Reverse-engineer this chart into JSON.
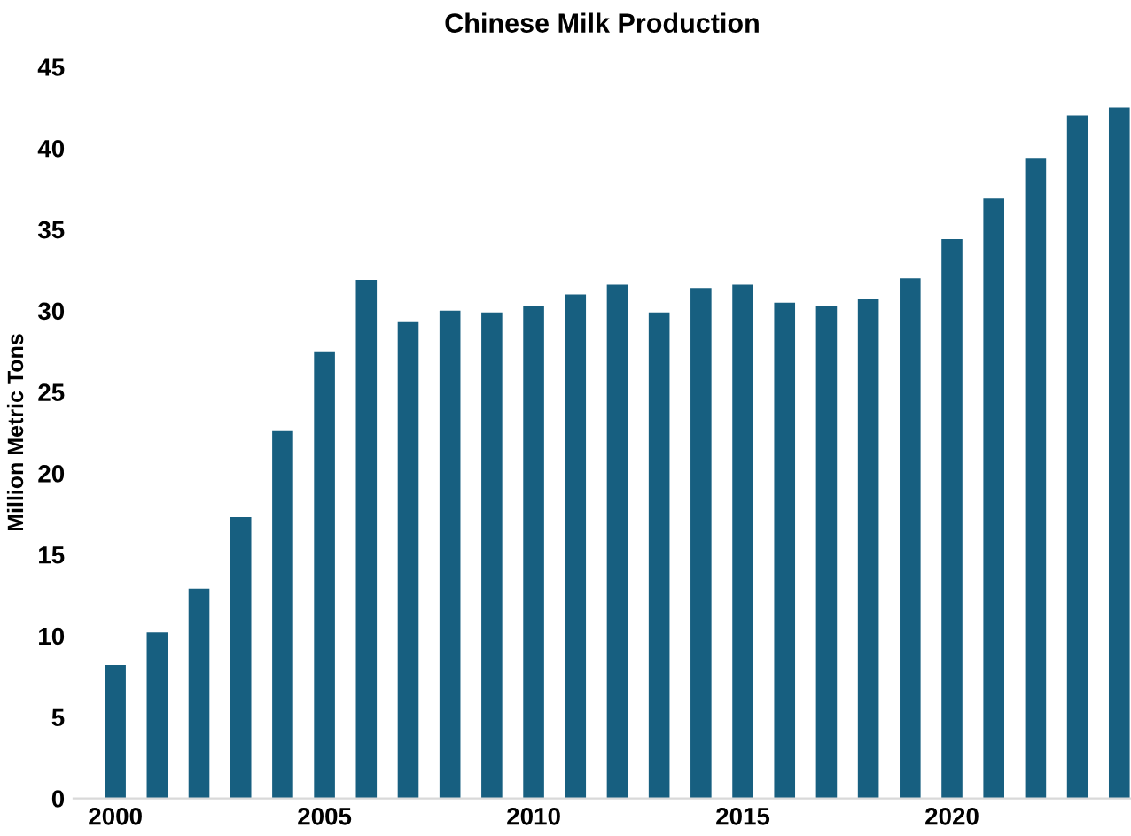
{
  "chart_data": {
    "type": "bar",
    "title": "Chinese Milk Production",
    "ylabel": "Million Metric Tons",
    "categories": [
      "2000",
      null,
      null,
      null,
      null,
      "2005",
      null,
      null,
      null,
      null,
      "2010",
      null,
      null,
      null,
      null,
      "2015",
      null,
      null,
      null,
      null,
      "2020",
      null,
      null,
      null,
      null
    ],
    "values": [
      8.2,
      10.2,
      12.9,
      17.3,
      22.6,
      27.5,
      31.9,
      29.3,
      30.0,
      29.9,
      30.3,
      31.0,
      31.6,
      29.9,
      31.4,
      31.6,
      30.5,
      30.3,
      30.7,
      32.0,
      34.4,
      36.9,
      39.4,
      42.0,
      42.5
    ],
    "color": "#175f80",
    "ylim": [
      0,
      45
    ],
    "yticks": [
      0,
      5,
      10,
      15,
      20,
      25,
      30,
      35,
      40,
      45
    ],
    "grid": false
  }
}
